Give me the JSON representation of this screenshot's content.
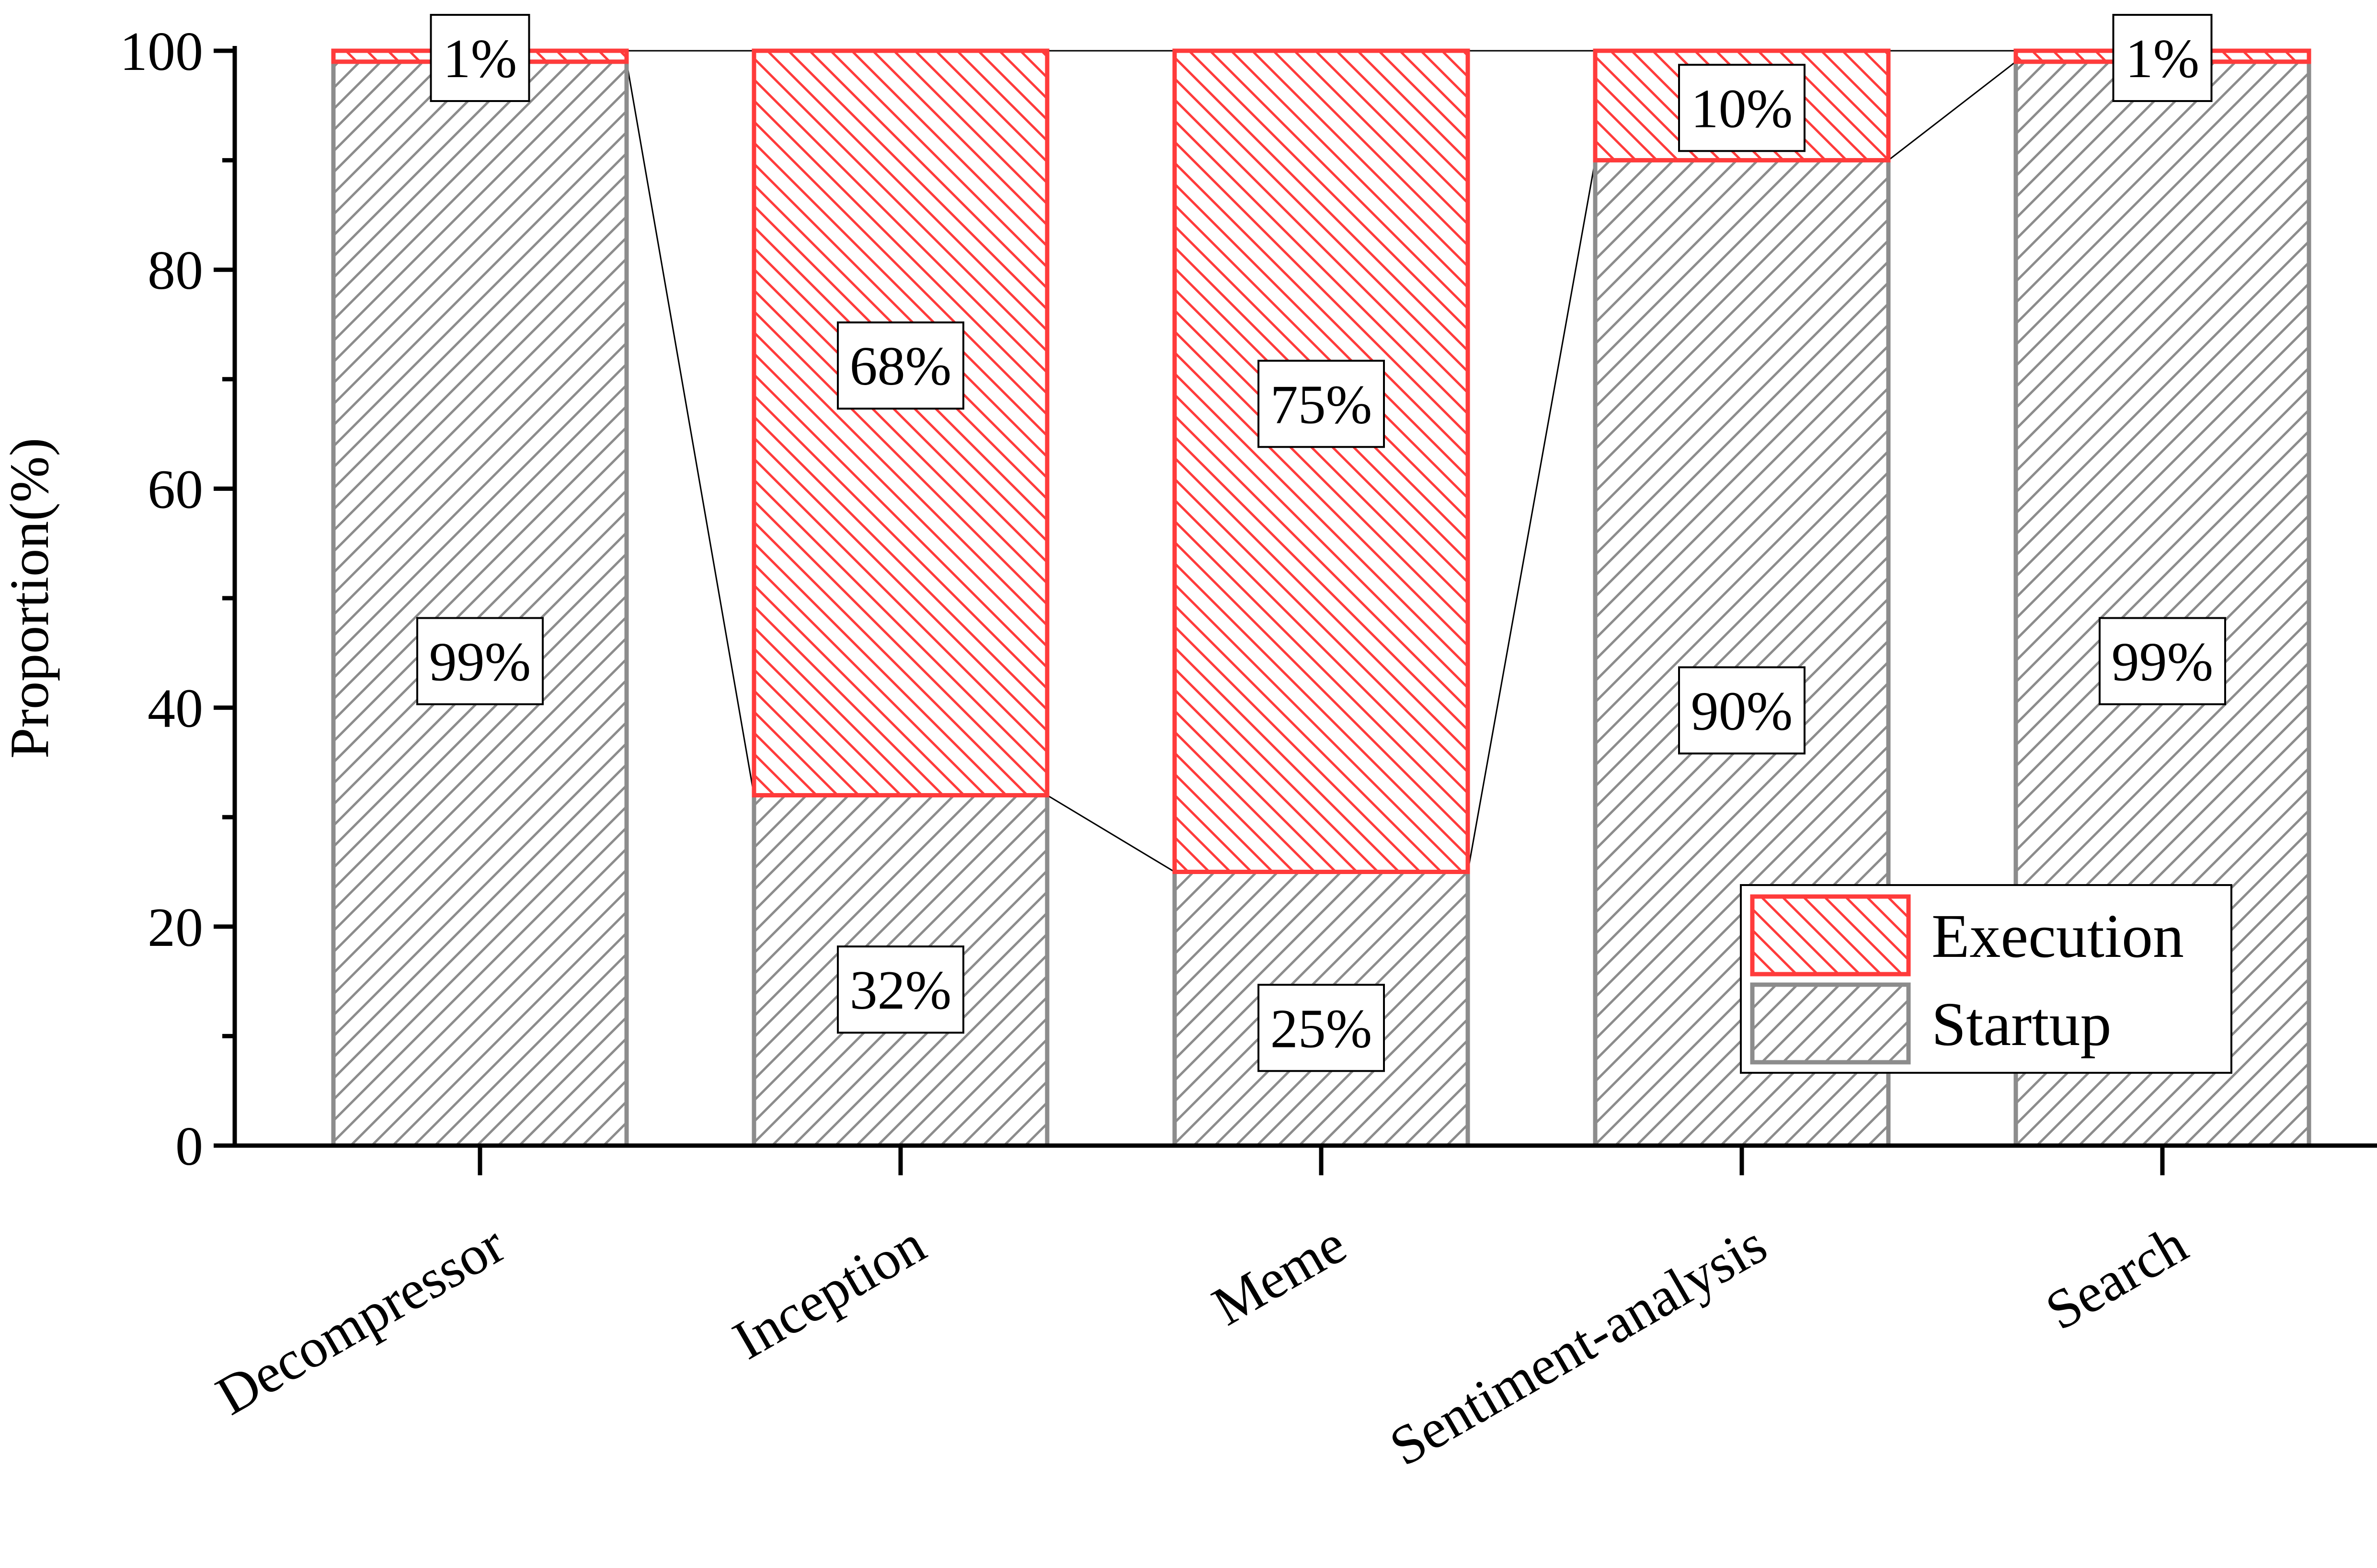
{
  "chart_data": {
    "type": "bar",
    "stacked": true,
    "title": "",
    "xlabel": "",
    "ylabel": "Proportion(%)",
    "ylim": [
      0,
      100
    ],
    "yticks": [
      0,
      20,
      40,
      60,
      80,
      100
    ],
    "grid": false,
    "legend_position": "bottom-right",
    "categories": [
      "Decompressor",
      "Inception",
      "Meme",
      "Sentiment-analysis",
      "Search"
    ],
    "series": [
      {
        "name": "Startup",
        "values": [
          99,
          32,
          25,
          90,
          99
        ],
        "labels": [
          "99%",
          "32%",
          "25%",
          "90%",
          "99%"
        ],
        "color": "#8c8c8c",
        "hatch": "forward-diagonal"
      },
      {
        "name": "Execution",
        "values": [
          1,
          68,
          75,
          10,
          1
        ],
        "labels": [
          "1%",
          "68%",
          "75%",
          "10%",
          "1%"
        ],
        "color": "#ff3b3b",
        "hatch": "back-diagonal"
      }
    ],
    "legend_order": [
      "Execution",
      "Startup"
    ],
    "connector_lines": true
  }
}
